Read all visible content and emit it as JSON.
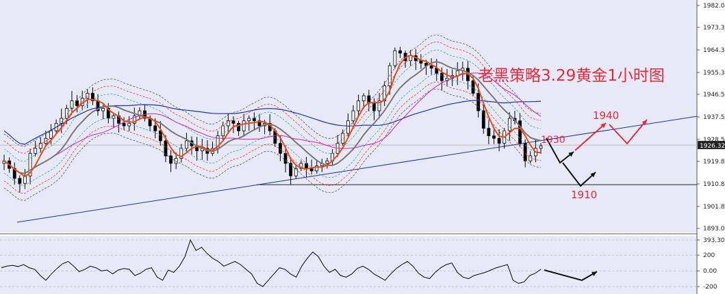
{
  "chart_data": [
    {
      "type": "candlestick",
      "title": "老黑策略3.29黄金1小时图",
      "y_ticks": [
        "1982.05",
        "1973.30",
        "1964.30",
        "1955.30",
        "1946.55",
        "1937.55",
        "1928.55",
        "1919.80",
        "1910.80",
        "1901.80",
        "1893.05"
      ],
      "current_price": "1926.32",
      "annotations": [
        "1930",
        "1940",
        "1910"
      ],
      "ylim": [
        1893.05,
        1982.05
      ],
      "colors": {
        "background": "#e8e9f6",
        "ma_fast": "#e84a17",
        "ma_mid": "#777777",
        "ma_slow": "#2231a9",
        "ma_pink": "#d61fb9",
        "bands": "#e13a3a",
        "bands_green": "#33a5a8",
        "trend": "#1b2fb0",
        "forecast_red": "#e8293a",
        "forecast_black": "#111111"
      },
      "series_close": [
        1920,
        1917,
        1913,
        1911,
        1914,
        1923,
        1925,
        1927,
        1929,
        1932,
        1935,
        1937,
        1941,
        1944,
        1942,
        1945,
        1947,
        1944,
        1940,
        1941,
        1937,
        1938,
        1935,
        1934,
        1935,
        1938,
        1940,
        1937,
        1934,
        1932,
        1928,
        1922,
        1919,
        1921,
        1925,
        1928,
        1926,
        1924,
        1925,
        1923,
        1925,
        1930,
        1934,
        1936,
        1935,
        1932,
        1936,
        1937,
        1936,
        1934,
        1935,
        1932,
        1927,
        1923,
        1919,
        1914,
        1917,
        1919,
        1917,
        1916,
        1918,
        1919,
        1920,
        1923,
        1927,
        1931,
        1936,
        1940,
        1944,
        1946,
        1943,
        1940,
        1944,
        1950,
        1958,
        1964,
        1963,
        1960,
        1962,
        1960,
        1959,
        1958,
        1957,
        1955,
        1952,
        1953,
        1954,
        1956,
        1957,
        1952,
        1947,
        1940,
        1933,
        1930,
        1929,
        1927,
        1932,
        1937,
        1936,
        1927,
        1920,
        1922,
        1925,
        1926
      ]
    },
    {
      "type": "line",
      "title": "",
      "y_ticks": [
        "393.306",
        "200",
        "0.00",
        "-200"
      ],
      "ylim": [
        -260,
        393.306
      ],
      "values": [
        40,
        60,
        70,
        55,
        80,
        40,
        20,
        -60,
        -120,
        -40,
        30,
        90,
        120,
        60,
        -10,
        20,
        60,
        40,
        0,
        10,
        -40,
        10,
        30,
        20,
        -60,
        -30,
        20,
        40,
        -80,
        -120,
        10,
        -20,
        60,
        180,
        393,
        260,
        300,
        220,
        160,
        120,
        60,
        90,
        120,
        80,
        20,
        -40,
        -160,
        -200,
        -120,
        -40,
        40,
        20,
        -40,
        -80,
        60,
        160,
        240,
        180,
        60,
        -20,
        20,
        -60,
        -80,
        -40,
        30,
        60,
        20,
        -40,
        -80,
        -120,
        -40,
        30,
        80,
        120,
        60,
        -30,
        -80,
        -100,
        -20,
        40,
        80,
        100,
        -20,
        -80,
        -100,
        -60,
        -40,
        -20,
        10,
        40,
        60,
        80,
        -120,
        -160,
        -140,
        -60,
        -30,
        20
      ],
      "forecast_black": [
        [
          0,
          10
        ],
        [
          14,
          -60
        ],
        [
          20,
          -20
        ],
        [
          24,
          20
        ]
      ]
    }
  ]
}
